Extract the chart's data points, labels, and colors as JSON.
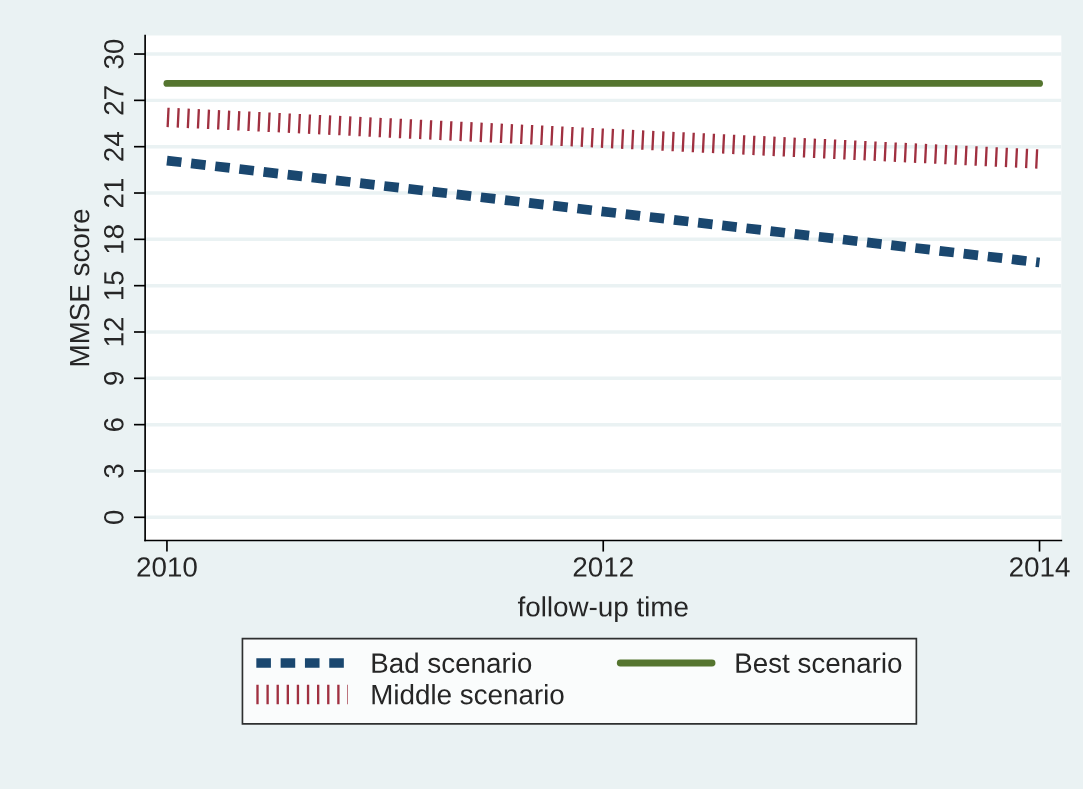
{
  "chart_data": {
    "type": "line",
    "xlabel": "follow-up time",
    "ylabel": "MMSE score",
    "x": [
      2010,
      2014
    ],
    "series": [
      {
        "name": "Bad scenario",
        "color": "#1a476f",
        "values": [
          23.1,
          16.5
        ],
        "line_style": "dashed"
      },
      {
        "name": "Middle scenario",
        "color": "#a03040",
        "values": [
          25.9,
          23.2
        ],
        "line_style": "dotted"
      },
      {
        "name": "Best scenario",
        "color": "#55752f",
        "values": [
          28.1,
          28.1
        ],
        "line_style": "solid"
      }
    ],
    "xlim": [
      2009.9,
      2014.1
    ],
    "xticks": [
      2010,
      2012,
      2014
    ],
    "ylim": [
      -1.5,
      31.2
    ],
    "yticks": [
      0,
      3,
      6,
      9,
      12,
      15,
      18,
      21,
      24,
      27,
      30
    ],
    "grid": "y",
    "legend": "bottom"
  }
}
